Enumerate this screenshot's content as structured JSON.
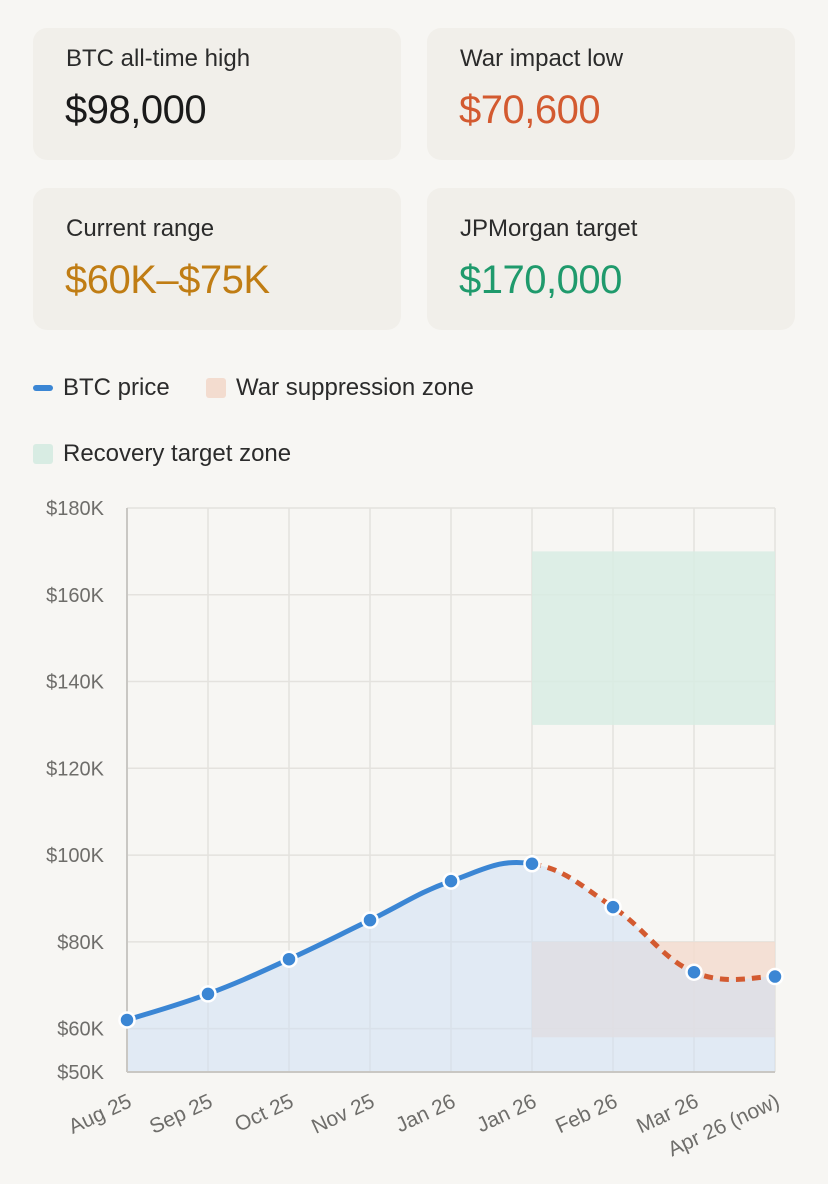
{
  "stats": [
    {
      "label": "BTC all-time high",
      "value": "$98,000",
      "color": "#1a1a1a"
    },
    {
      "label": "War impact low",
      "value": "$70,600",
      "color": "#d35a30"
    },
    {
      "label": "Current range",
      "value": "$60K–$75K",
      "color": "#c07d14"
    },
    {
      "label": "JPMorgan target",
      "value": "$170,000",
      "color": "#1f9a6c"
    }
  ],
  "legend": [
    {
      "label": "BTC price",
      "color": "#3b86d4",
      "kind": "line"
    },
    {
      "label": "War suppression zone",
      "color": "#f3dccf",
      "kind": "box"
    },
    {
      "label": "Recovery target zone",
      "color": "#d8ece3",
      "kind": "box"
    }
  ],
  "chart_data": {
    "type": "line",
    "categories": [
      "Aug 25",
      "Sep 25",
      "Oct 25",
      "Nov 25",
      "Jan 26",
      "Jan 26",
      "Feb 26",
      "Mar 26",
      "Apr 26 (now)"
    ],
    "series": [
      {
        "name": "BTC price",
        "values": [
          62000,
          68000,
          76000,
          85000,
          94000,
          98000,
          88000,
          73000,
          72000
        ],
        "color": "#3b86d4",
        "war_segment_color": "#d35a30",
        "war_from_index": 5
      }
    ],
    "y_ticks": [
      50000,
      60000,
      80000,
      100000,
      120000,
      140000,
      160000,
      180000
    ],
    "y_tick_labels": [
      "$50K",
      "$60K",
      "$80K",
      "$100K",
      "$120K",
      "$140K",
      "$160K",
      "$180K"
    ],
    "ylim": [
      50000,
      180000
    ],
    "zones": [
      {
        "name": "Recovery target zone",
        "from_index": 5,
        "to_index": 8,
        "y_from": 130000,
        "y_to": 170000,
        "color": "#d8ece3"
      },
      {
        "name": "War suppression zone",
        "from_index": 5,
        "to_index": 8,
        "y_from": 58000,
        "y_to": 80000,
        "color": "#f3dccf"
      }
    ],
    "title": "",
    "xlabel": "",
    "ylabel": ""
  }
}
